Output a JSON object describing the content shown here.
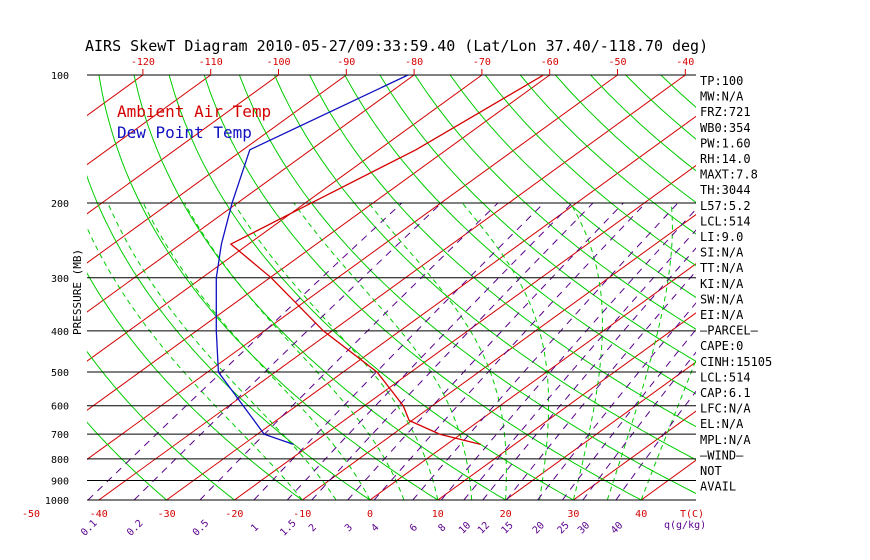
{
  "title": "AIRS SkewT Diagram 2010-05-27/09:33:59.40 (Lat/Lon 37.40/-118.70 deg)",
  "colors": {
    "ambient": "#d40000",
    "dewpoint": "#1010c0",
    "isotherm": "#d40000",
    "dry_adiabat": "#00cc00",
    "moist_adiabat": "#00cc00",
    "mixing_ratio": "#5a008c",
    "isobar": "#000000"
  },
  "indices": [
    "TP:100",
    "MW:N/A",
    "FRZ:721",
    "WB0:354",
    "PW:1.60",
    "RH:14.0",
    "MAXT:7.8",
    "TH:3044",
    "L57:5.2",
    "LCL:514",
    "LI:9.0",
    "SI:N/A",
    "TT:N/A",
    "KI:N/A",
    "SW:N/A",
    "EI:N/A",
    "—PARCEL—",
    "CAPE:0",
    "CINH:15105",
    "LCL:514",
    "CAP:6.1",
    "LFC:N/A",
    "EL:N/A",
    "MPL:N/A",
    "—WIND—",
    "NOT",
    "AVAIL"
  ],
  "chart_data": {
    "type": "line",
    "title": "AIRS SkewT Diagram 2010-05-27/09:33:59.40 (Lat/Lon 37.40/-118.70 deg)",
    "ylabel": "PRESSURE (MB)",
    "xlabel": "T(C)",
    "y_scale": "log",
    "ylim": [
      1000,
      100
    ],
    "y_ticks": [
      {
        "p": 100,
        "label": "100"
      },
      {
        "p": 200,
        "label": "200"
      },
      {
        "p": 300,
        "label": "300"
      },
      {
        "p": 400,
        "label": "400"
      },
      {
        "p": 500,
        "label": "500"
      },
      {
        "p": 600,
        "label": "600"
      },
      {
        "p": 700,
        "label": "700"
      },
      {
        "p": 800,
        "label": "800"
      },
      {
        "p": 900,
        "label": "900"
      },
      {
        "p": 1000,
        "label": "1000"
      }
    ],
    "top_temp_ticks": [
      -120,
      -110,
      -100,
      -90,
      -80,
      -70,
      -60,
      -50,
      -40
    ],
    "bottom_temp_ticks": [
      -50,
      -40,
      -30,
      -20,
      -10,
      0,
      10,
      20,
      30,
      40
    ],
    "bottom_axis_unit_label": "T(C)",
    "mixing_ratio_ticks": [
      "0.1",
      "0.2",
      "0.5",
      "1",
      "1.5",
      "2",
      "3",
      "4",
      "6",
      "8",
      "10",
      "12",
      "15",
      "20",
      "25",
      "30",
      "40"
    ],
    "mixing_ratio_unit_label": "q(g/kg)",
    "legend": [
      "Ambient Air Temp",
      "Dew Point Temp"
    ],
    "grid": true,
    "series": [
      {
        "name": "Ambient Air Temp",
        "points": [
          {
            "p": 100,
            "t": -60.9
          },
          {
            "p": 150,
            "t": -64.5
          },
          {
            "p": 200,
            "t": -69.1
          },
          {
            "p": 250,
            "t": -72.6
          },
          {
            "p": 300,
            "t": -59.8
          },
          {
            "p": 400,
            "t": -41.3
          },
          {
            "p": 500,
            "t": -25.0
          },
          {
            "p": 600,
            "t": -14.3
          },
          {
            "p": 650,
            "t": -10.4
          },
          {
            "p": 700,
            "t": -3.1
          },
          {
            "p": 740,
            "t": 5.0
          }
        ]
      },
      {
        "name": "Dew Point Temp",
        "points": [
          {
            "p": 100,
            "t": -80.9
          },
          {
            "p": 150,
            "t": -89.0
          },
          {
            "p": 200,
            "t": -80.8
          },
          {
            "p": 250,
            "t": -74.0
          },
          {
            "p": 300,
            "t": -67.9
          },
          {
            "p": 400,
            "t": -57.1
          },
          {
            "p": 500,
            "t": -48.4
          },
          {
            "p": 600,
            "t": -37.9
          },
          {
            "p": 700,
            "t": -29.0
          },
          {
            "p": 740,
            "t": -22.6
          }
        ]
      }
    ]
  }
}
